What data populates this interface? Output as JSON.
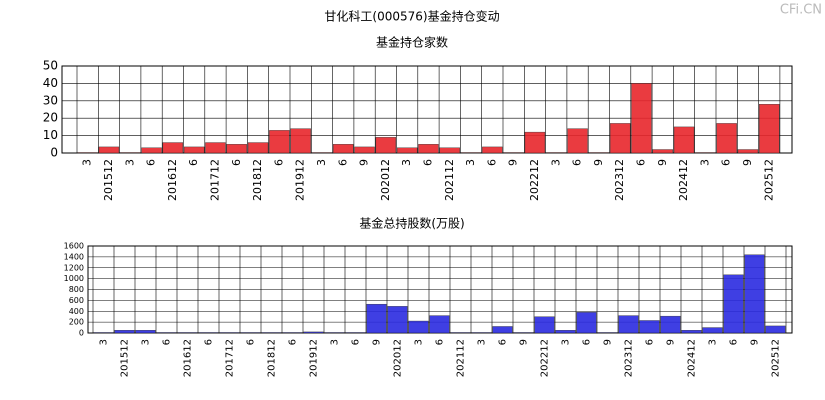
{
  "title": "甘化科工(000576)基金持仓变动",
  "watermark": "CFi.CN",
  "chart_data": [
    {
      "type": "bar",
      "title": "基金持仓家数",
      "color": "#e8262b",
      "categories": [
        "3",
        "201512",
        "3",
        "6",
        "201612",
        "6",
        "201712",
        "6",
        "201812",
        "6",
        "201912",
        "3",
        "6",
        "9",
        "202012",
        "3",
        "6",
        "202112",
        "3",
        "6",
        "9",
        "202212",
        "3",
        "6",
        "9",
        "202312",
        "6",
        "9",
        "202412",
        "3",
        "6",
        "9",
        "202512"
      ],
      "values": [
        0.3,
        3.5,
        0.3,
        3,
        6,
        3.5,
        6,
        5,
        6,
        13,
        14,
        0.3,
        5,
        3.5,
        9,
        3,
        5,
        3,
        0.3,
        3.5,
        0.3,
        12,
        0.3,
        14,
        0.3,
        17,
        40,
        2,
        15,
        0.3,
        17,
        2,
        28
      ],
      "ylim": [
        0,
        50
      ],
      "yticks": [
        0,
        10,
        20,
        30,
        40,
        50
      ],
      "grid": true
    },
    {
      "type": "bar",
      "title": "基金总持股数(万股)",
      "color": "#2a2ae0",
      "categories": [
        "3",
        "201512",
        "3",
        "6",
        "201612",
        "6",
        "201712",
        "6",
        "201812",
        "6",
        "201912",
        "3",
        "6",
        "9",
        "202012",
        "3",
        "6",
        "202112",
        "3",
        "6",
        "9",
        "202212",
        "3",
        "6",
        "9",
        "202312",
        "6",
        "9",
        "202412",
        "3",
        "6",
        "9",
        "202512"
      ],
      "values": [
        10,
        50,
        50,
        10,
        10,
        10,
        10,
        10,
        10,
        10,
        20,
        10,
        10,
        530,
        490,
        220,
        320,
        10,
        10,
        120,
        10,
        300,
        50,
        380,
        10,
        320,
        230,
        310,
        50,
        100,
        1070,
        1440,
        130
      ],
      "ylim": [
        0,
        1600
      ],
      "yticks": [
        0,
        200,
        400,
        600,
        800,
        1000,
        1200,
        1400,
        1600
      ],
      "grid": true
    }
  ]
}
